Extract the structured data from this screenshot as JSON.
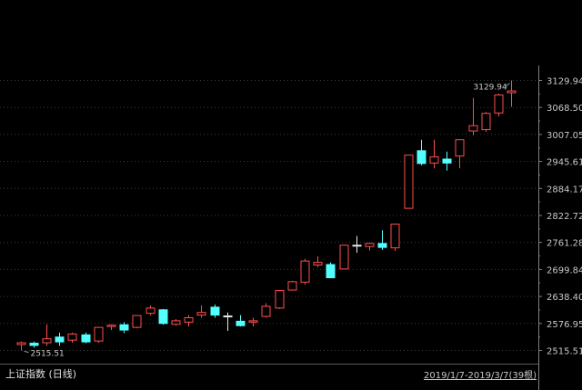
{
  "footer": {
    "index_label": "上证指数 (日线)",
    "range_label": "2019/1/7-2019/3/7(39根)"
  },
  "chart_data": {
    "type": "candlestick",
    "title": "",
    "ylim": [
      2485,
      3160
    ],
    "y_ticks": [
      3129.94,
      3068.5,
      3007.05,
      2945.61,
      2884.17,
      2822.72,
      2761.28,
      2699.84,
      2638.4,
      2576.95,
      2515.51
    ],
    "y_tick_labels": [
      "3129.94",
      "3068.50",
      "3007.05",
      "2945.61",
      "2884.17",
      "2822.72",
      "2761.28",
      "2699.84",
      "2638.40",
      "2576.95",
      "2515.51"
    ],
    "grid": true,
    "max_label": "3129.94",
    "min_label": "2515.51",
    "colors": {
      "up": "#ff4d4d",
      "down": "#54ffff",
      "flat": "#e8e8e8",
      "grid": "#3a3a3a",
      "axis": "#808080"
    },
    "candles": [
      {
        "o": 2529,
        "h": 2536,
        "l": 2515.51,
        "c": 2533
      },
      {
        "o": 2532,
        "h": 2536,
        "l": 2522,
        "c": 2527
      },
      {
        "o": 2533,
        "h": 2575,
        "l": 2526,
        "c": 2542
      },
      {
        "o": 2546,
        "h": 2556,
        "l": 2526,
        "c": 2535
      },
      {
        "o": 2539,
        "h": 2556,
        "l": 2533,
        "c": 2553
      },
      {
        "o": 2551,
        "h": 2556,
        "l": 2532,
        "c": 2535
      },
      {
        "o": 2537,
        "h": 2569,
        "l": 2533,
        "c": 2568
      },
      {
        "o": 2570,
        "h": 2575,
        "l": 2562,
        "c": 2573
      },
      {
        "o": 2574,
        "h": 2580,
        "l": 2555,
        "c": 2562
      },
      {
        "o": 2568,
        "h": 2596,
        "l": 2566,
        "c": 2595
      },
      {
        "o": 2600,
        "h": 2618,
        "l": 2596,
        "c": 2612
      },
      {
        "o": 2608,
        "h": 2610,
        "l": 2574,
        "c": 2577
      },
      {
        "o": 2575,
        "h": 2587,
        "l": 2572,
        "c": 2583
      },
      {
        "o": 2580,
        "h": 2596,
        "l": 2570,
        "c": 2590
      },
      {
        "o": 2596,
        "h": 2618,
        "l": 2590,
        "c": 2602
      },
      {
        "o": 2614,
        "h": 2620,
        "l": 2590,
        "c": 2596
      },
      {
        "o": 2594,
        "h": 2602,
        "l": 2560,
        "c": 2594
      },
      {
        "o": 2582,
        "h": 2596,
        "l": 2570,
        "c": 2572
      },
      {
        "o": 2580,
        "h": 2590,
        "l": 2570,
        "c": 2583
      },
      {
        "o": 2593,
        "h": 2623,
        "l": 2590,
        "c": 2616
      },
      {
        "o": 2612,
        "h": 2652,
        "l": 2610,
        "c": 2652
      },
      {
        "o": 2653,
        "h": 2674,
        "l": 2652,
        "c": 2672
      },
      {
        "o": 2671,
        "h": 2724,
        "l": 2665,
        "c": 2719
      },
      {
        "o": 2710,
        "h": 2730,
        "l": 2705,
        "c": 2716
      },
      {
        "o": 2711,
        "h": 2716,
        "l": 2680,
        "c": 2681
      },
      {
        "o": 2701,
        "h": 2756,
        "l": 2700,
        "c": 2755
      },
      {
        "o": 2755,
        "h": 2776,
        "l": 2738,
        "c": 2755
      },
      {
        "o": 2752,
        "h": 2761,
        "l": 2743,
        "c": 2759
      },
      {
        "o": 2759,
        "h": 2789,
        "l": 2744,
        "c": 2750
      },
      {
        "o": 2749,
        "h": 2803,
        "l": 2742,
        "c": 2803
      },
      {
        "o": 2839,
        "h": 2960,
        "l": 2839,
        "c": 2960
      },
      {
        "o": 2970,
        "h": 2995,
        "l": 2937,
        "c": 2941
      },
      {
        "o": 2942,
        "h": 2995,
        "l": 2930,
        "c": 2956
      },
      {
        "o": 2951,
        "h": 2968,
        "l": 2925,
        "c": 2942
      },
      {
        "o": 2958,
        "h": 2996,
        "l": 2930,
        "c": 2995
      },
      {
        "o": 3015,
        "h": 3090,
        "l": 3005,
        "c": 3027
      },
      {
        "o": 3018,
        "h": 3058,
        "l": 3013,
        "c": 3055
      },
      {
        "o": 3056,
        "h": 3100,
        "l": 3048,
        "c": 3097
      },
      {
        "o": 3102,
        "h": 3129.94,
        "l": 3070,
        "c": 3106
      }
    ]
  }
}
